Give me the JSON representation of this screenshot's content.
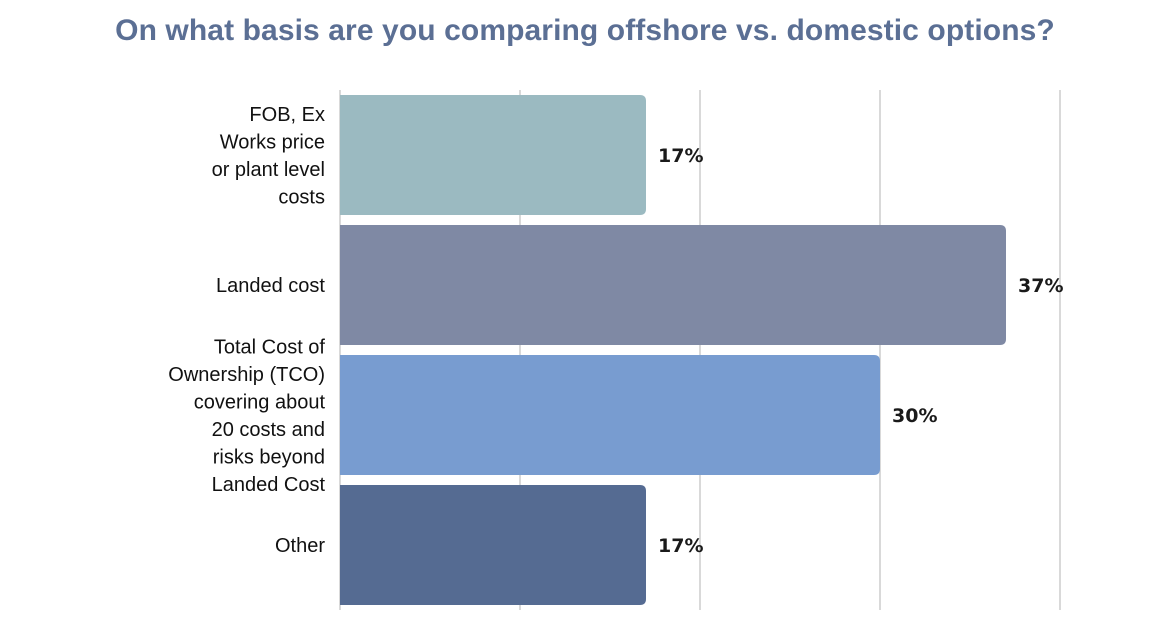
{
  "chart_data": {
    "type": "bar",
    "orientation": "horizontal",
    "title": "On what basis are you comparing offshore vs. domestic options?",
    "categories": [
      [
        "FOB, Ex",
        "Works price",
        "or plant level",
        "costs"
      ],
      [
        "Landed cost"
      ],
      [
        "Total Cost of",
        "Ownership (TCO)",
        "covering about",
        "20 costs and",
        "risks beyond",
        "Landed Cost"
      ],
      [
        "Other"
      ]
    ],
    "values": [
      17,
      37,
      30,
      17
    ],
    "value_labels": [
      "17%",
      "37%",
      "30%",
      "17%"
    ],
    "unit": "%",
    "xlim": [
      0,
      40
    ],
    "grid": true,
    "colors": [
      "#9bbac1",
      "#7f89a4",
      "#789cd0",
      "#556b92"
    ]
  }
}
